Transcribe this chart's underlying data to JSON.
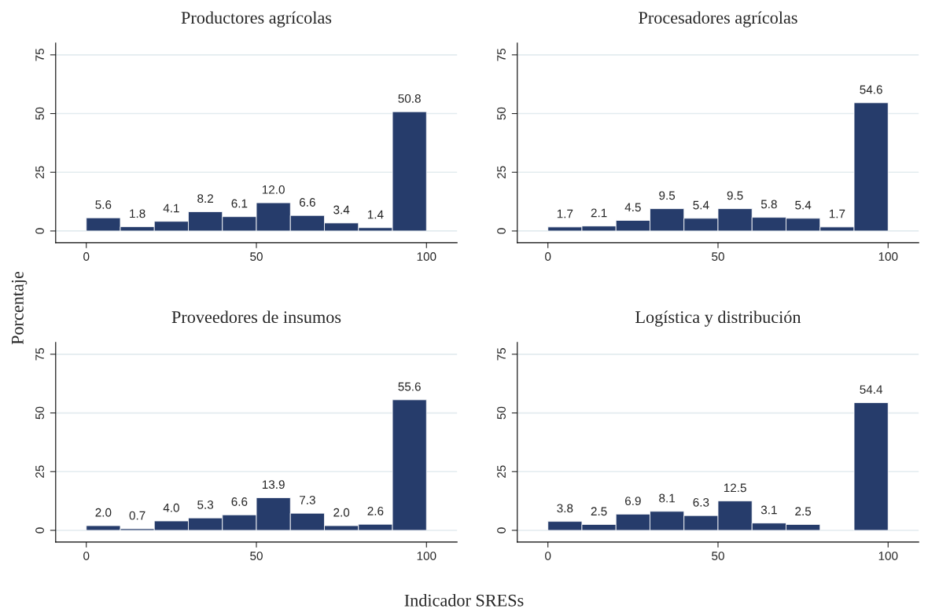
{
  "chart_data": [
    {
      "type": "histogram",
      "title": "Productores agrícolas",
      "ylabel": "Porcentaje",
      "bins": [
        0,
        10,
        20,
        30,
        40,
        50,
        60,
        70,
        80,
        90,
        100
      ],
      "values": [
        5.6,
        1.8,
        4.1,
        8.2,
        6.1,
        12.0,
        6.6,
        3.4,
        1.4,
        50.8
      ],
      "value_labels": [
        "5.6",
        "1.8",
        "4.1",
        "8.2",
        "6.1",
        "12.0",
        "6.6",
        "3.4",
        "1.4",
        "50.8"
      ],
      "color": "#263c6b",
      "xlim": [
        -9,
        109
      ],
      "ylim": [
        -5,
        80
      ],
      "xticks": [
        0,
        50,
        100
      ],
      "yticks": [
        0,
        25,
        50,
        75
      ],
      "grid": "y"
    },
    {
      "type": "histogram",
      "title": "Procesadores agrícolas",
      "bins": [
        0,
        10,
        20,
        30,
        40,
        50,
        60,
        70,
        80,
        90,
        100
      ],
      "values": [
        1.7,
        2.1,
        4.5,
        9.5,
        5.4,
        9.5,
        5.8,
        5.4,
        1.7,
        54.6
      ],
      "value_labels": [
        "1.7",
        "2.1",
        "4.5",
        "9.5",
        "5.4",
        "9.5",
        "5.8",
        "5.4",
        "1.7",
        "54.6"
      ],
      "color": "#263c6b",
      "xlim": [
        -9,
        109
      ],
      "ylim": [
        -5,
        80
      ],
      "xticks": [
        0,
        50,
        100
      ],
      "yticks": [
        0,
        25,
        50,
        75
      ],
      "grid": "y"
    },
    {
      "type": "histogram",
      "title": "Proveedores de insumos",
      "xlabel": "Indicador SRESs",
      "bins": [
        0,
        10,
        20,
        30,
        40,
        50,
        60,
        70,
        80,
        90,
        100
      ],
      "values": [
        2.0,
        0.7,
        4.0,
        5.3,
        6.6,
        13.9,
        7.3,
        2.0,
        2.6,
        55.6
      ],
      "value_labels": [
        "2.0",
        "0.7",
        "4.0",
        "5.3",
        "6.6",
        "13.9",
        "7.3",
        "2.0",
        "2.6",
        "55.6"
      ],
      "color": "#263c6b",
      "xlim": [
        -9,
        109
      ],
      "ylim": [
        -5,
        80
      ],
      "xticks": [
        0,
        50,
        100
      ],
      "yticks": [
        0,
        25,
        50,
        75
      ],
      "grid": "y"
    },
    {
      "type": "histogram",
      "title": "Logística y distribución",
      "bins": [
        0,
        10,
        20,
        30,
        40,
        50,
        60,
        70,
        80,
        90,
        100
      ],
      "values": [
        3.8,
        2.5,
        6.9,
        8.1,
        6.3,
        12.5,
        3.1,
        2.5,
        0,
        54.4
      ],
      "value_labels": [
        "3.8",
        "2.5",
        "6.9",
        "8.1",
        "6.3",
        "12.5",
        "3.1",
        "2.5",
        null,
        "54.4"
      ],
      "color": "#263c6b",
      "xlim": [
        -9,
        109
      ],
      "ylim": [
        -5,
        80
      ],
      "xticks": [
        0,
        50,
        100
      ],
      "yticks": [
        0,
        25,
        50,
        75
      ],
      "grid": "y"
    }
  ]
}
